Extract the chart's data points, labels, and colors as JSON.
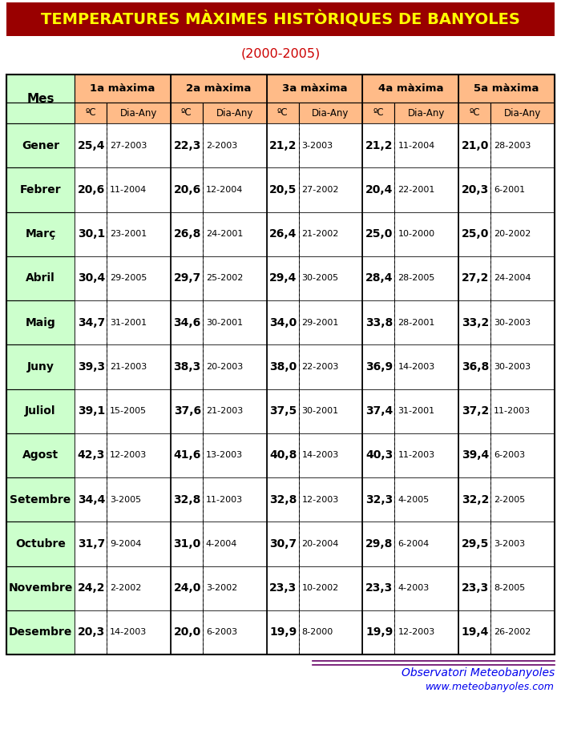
{
  "title": "TEMPERATURES MÀXIMES HISTÒRIQUES DE BANYOLES",
  "subtitle": "(2000-2005)",
  "title_bg": "#990000",
  "title_color": "#FFFF00",
  "subtitle_color": "#CC0000",
  "col_headers": [
    "1a màxima",
    "2a màxima",
    "3a màxima",
    "4a màxima",
    "5a màxima"
  ],
  "months": [
    "Gener",
    "Febrer",
    "Març",
    "Abril",
    "Maig",
    "Juny",
    "Juliol",
    "Agost",
    "Setembre",
    "Octubre",
    "Novembre",
    "Desembre"
  ],
  "data": [
    [
      [
        "25,4",
        "27-2003"
      ],
      [
        "22,3",
        "2-2003"
      ],
      [
        "21,2",
        "3-2003"
      ],
      [
        "21,2",
        "11-2004"
      ],
      [
        "21,0",
        "28-2003"
      ]
    ],
    [
      [
        "20,6",
        "11-2004"
      ],
      [
        "20,6",
        "12-2004"
      ],
      [
        "20,5",
        "27-2002"
      ],
      [
        "20,4",
        "22-2001"
      ],
      [
        "20,3",
        "6-2001"
      ]
    ],
    [
      [
        "30,1",
        "23-2001"
      ],
      [
        "26,8",
        "24-2001"
      ],
      [
        "26,4",
        "21-2002"
      ],
      [
        "25,0",
        "10-2000"
      ],
      [
        "25,0",
        "20-2002"
      ]
    ],
    [
      [
        "30,4",
        "29-2005"
      ],
      [
        "29,7",
        "25-2002"
      ],
      [
        "29,4",
        "30-2005"
      ],
      [
        "28,4",
        "28-2005"
      ],
      [
        "27,2",
        "24-2004"
      ]
    ],
    [
      [
        "34,7",
        "31-2001"
      ],
      [
        "34,6",
        "30-2001"
      ],
      [
        "34,0",
        "29-2001"
      ],
      [
        "33,8",
        "28-2001"
      ],
      [
        "33,2",
        "30-2003"
      ]
    ],
    [
      [
        "39,3",
        "21-2003"
      ],
      [
        "38,3",
        "20-2003"
      ],
      [
        "38,0",
        "22-2003"
      ],
      [
        "36,9",
        "14-2003"
      ],
      [
        "36,8",
        "30-2003"
      ]
    ],
    [
      [
        "39,1",
        "15-2005"
      ],
      [
        "37,6",
        "21-2003"
      ],
      [
        "37,5",
        "30-2001"
      ],
      [
        "37,4",
        "31-2001"
      ],
      [
        "37,2",
        "11-2003"
      ]
    ],
    [
      [
        "42,3",
        "12-2003"
      ],
      [
        "41,6",
        "13-2003"
      ],
      [
        "40,8",
        "14-2003"
      ],
      [
        "40,3",
        "11-2003"
      ],
      [
        "39,4",
        "6-2003"
      ]
    ],
    [
      [
        "34,4",
        "3-2005"
      ],
      [
        "32,8",
        "11-2003"
      ],
      [
        "32,8",
        "12-2003"
      ],
      [
        "32,3",
        "4-2005"
      ],
      [
        "32,2",
        "2-2005"
      ]
    ],
    [
      [
        "31,7",
        "9-2004"
      ],
      [
        "31,0",
        "4-2004"
      ],
      [
        "30,7",
        "20-2004"
      ],
      [
        "29,8",
        "6-2004"
      ],
      [
        "29,5",
        "3-2003"
      ]
    ],
    [
      [
        "24,2",
        "2-2002"
      ],
      [
        "24,0",
        "3-2002"
      ],
      [
        "23,3",
        "10-2002"
      ],
      [
        "23,3",
        "4-2003"
      ],
      [
        "23,3",
        "8-2005"
      ]
    ],
    [
      [
        "20,3",
        "14-2003"
      ],
      [
        "20,0",
        "6-2003"
      ],
      [
        "19,9",
        "8-2000"
      ],
      [
        "19,9",
        "12-2003"
      ],
      [
        "19,4",
        "26-2002"
      ]
    ]
  ],
  "header_bg": "#FFBB88",
  "month_bg": "#CCFFCC",
  "row_bg": "#FFFFFF",
  "footer_text1": "Observatori Meteobanyoles",
  "footer_text2": "www.meteobanyoles.com",
  "footer_color": "#0000EE",
  "footer_line_color": "#660066"
}
